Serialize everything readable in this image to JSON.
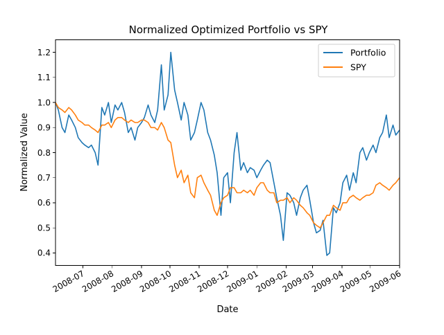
{
  "chart_data": {
    "type": "line",
    "title": "Normalized Optimized Portfolio vs SPY",
    "xlabel": "Date",
    "ylabel": "Normalized Value",
    "xlim": [
      "2008-06-02",
      "2009-06-01"
    ],
    "ylim": [
      0.35,
      1.25
    ],
    "x_ticks": [
      "2008-07",
      "2008-08",
      "2008-09",
      "2008-10",
      "2008-11",
      "2008-12",
      "2009-01",
      "2009-02",
      "2009-03",
      "2009-04",
      "2009-05",
      "2009-06"
    ],
    "y_ticks": [
      "0.4",
      "0.5",
      "0.6",
      "0.7",
      "0.8",
      "0.9",
      "1.0",
      "1.1",
      "1.2"
    ],
    "grid": false,
    "legend_position": "top-right",
    "series": [
      {
        "name": "Portfolio",
        "color": "#1f77b4",
        "x": [
          "2008-06-02",
          "2008-06-05",
          "2008-06-09",
          "2008-06-12",
          "2008-06-16",
          "2008-06-19",
          "2008-06-23",
          "2008-06-26",
          "2008-06-30",
          "2008-07-03",
          "2008-07-07",
          "2008-07-10",
          "2008-07-14",
          "2008-07-17",
          "2008-07-21",
          "2008-07-24",
          "2008-07-28",
          "2008-07-31",
          "2008-08-04",
          "2008-08-07",
          "2008-08-11",
          "2008-08-14",
          "2008-08-18",
          "2008-08-21",
          "2008-08-25",
          "2008-08-28",
          "2008-09-01",
          "2008-09-04",
          "2008-09-08",
          "2008-09-11",
          "2008-09-15",
          "2008-09-18",
          "2008-09-22",
          "2008-09-25",
          "2008-09-29",
          "2008-10-02",
          "2008-10-06",
          "2008-10-09",
          "2008-10-13",
          "2008-10-16",
          "2008-10-20",
          "2008-10-23",
          "2008-10-27",
          "2008-10-30",
          "2008-11-03",
          "2008-11-06",
          "2008-11-10",
          "2008-11-13",
          "2008-11-17",
          "2008-11-20",
          "2008-11-24",
          "2008-11-27",
          "2008-12-01",
          "2008-12-04",
          "2008-12-08",
          "2008-12-11",
          "2008-12-15",
          "2008-12-18",
          "2008-12-22",
          "2008-12-25",
          "2008-12-29",
          "2009-01-01",
          "2009-01-05",
          "2009-01-08",
          "2009-01-12",
          "2009-01-15",
          "2009-01-19",
          "2009-01-22",
          "2009-01-26",
          "2009-01-29",
          "2009-02-02",
          "2009-02-05",
          "2009-02-09",
          "2009-02-12",
          "2009-02-16",
          "2009-02-19",
          "2009-02-23",
          "2009-02-26",
          "2009-03-02",
          "2009-03-05",
          "2009-03-09",
          "2009-03-12",
          "2009-03-16",
          "2009-03-19",
          "2009-03-23",
          "2009-03-26",
          "2009-03-30",
          "2009-04-02",
          "2009-04-06",
          "2009-04-09",
          "2009-04-13",
          "2009-04-16",
          "2009-04-20",
          "2009-04-23",
          "2009-04-27",
          "2009-04-30",
          "2009-05-04",
          "2009-05-07",
          "2009-05-11",
          "2009-05-14",
          "2009-05-18",
          "2009-05-21",
          "2009-05-25",
          "2009-05-28",
          "2009-06-01"
        ],
        "values": [
          1.0,
          0.97,
          0.9,
          0.88,
          0.95,
          0.93,
          0.9,
          0.86,
          0.84,
          0.83,
          0.82,
          0.83,
          0.8,
          0.75,
          0.98,
          0.95,
          1.0,
          0.92,
          0.99,
          0.97,
          1.0,
          0.96,
          0.88,
          0.9,
          0.85,
          0.9,
          0.92,
          0.94,
          0.99,
          0.95,
          0.92,
          0.97,
          1.15,
          0.97,
          1.03,
          1.2,
          1.05,
          1.0,
          0.93,
          1.0,
          0.95,
          0.85,
          0.88,
          0.93,
          1.0,
          0.97,
          0.88,
          0.85,
          0.79,
          0.72,
          0.55,
          0.7,
          0.72,
          0.6,
          0.8,
          0.88,
          0.73,
          0.76,
          0.72,
          0.74,
          0.73,
          0.7,
          0.73,
          0.75,
          0.77,
          0.76,
          0.68,
          0.62,
          0.55,
          0.45,
          0.64,
          0.63,
          0.6,
          0.55,
          0.62,
          0.65,
          0.67,
          0.61,
          0.52,
          0.48,
          0.49,
          0.53,
          0.39,
          0.4,
          0.58,
          0.56,
          0.6,
          0.68,
          0.71,
          0.65,
          0.72,
          0.68,
          0.8,
          0.82,
          0.77,
          0.8,
          0.83,
          0.8,
          0.86,
          0.88,
          0.95,
          0.86,
          0.91,
          0.87,
          0.89
        ]
      },
      {
        "name": "SPY",
        "color": "#ff7f0e",
        "x": [
          "2008-06-02",
          "2008-06-05",
          "2008-06-09",
          "2008-06-12",
          "2008-06-16",
          "2008-06-19",
          "2008-06-23",
          "2008-06-26",
          "2008-06-30",
          "2008-07-03",
          "2008-07-07",
          "2008-07-10",
          "2008-07-14",
          "2008-07-17",
          "2008-07-21",
          "2008-07-24",
          "2008-07-28",
          "2008-07-31",
          "2008-08-04",
          "2008-08-07",
          "2008-08-11",
          "2008-08-14",
          "2008-08-18",
          "2008-08-21",
          "2008-08-25",
          "2008-08-28",
          "2008-09-01",
          "2008-09-04",
          "2008-09-08",
          "2008-09-11",
          "2008-09-15",
          "2008-09-18",
          "2008-09-22",
          "2008-09-25",
          "2008-09-29",
          "2008-10-02",
          "2008-10-06",
          "2008-10-09",
          "2008-10-13",
          "2008-10-16",
          "2008-10-20",
          "2008-10-23",
          "2008-10-27",
          "2008-10-30",
          "2008-11-03",
          "2008-11-06",
          "2008-11-10",
          "2008-11-13",
          "2008-11-17",
          "2008-11-20",
          "2008-11-24",
          "2008-11-27",
          "2008-12-01",
          "2008-12-04",
          "2008-12-08",
          "2008-12-11",
          "2008-12-15",
          "2008-12-18",
          "2008-12-22",
          "2008-12-25",
          "2008-12-29",
          "2009-01-01",
          "2009-01-05",
          "2009-01-08",
          "2009-01-12",
          "2009-01-15",
          "2009-01-19",
          "2009-01-22",
          "2009-01-26",
          "2009-01-29",
          "2009-02-02",
          "2009-02-05",
          "2009-02-09",
          "2009-02-12",
          "2009-02-16",
          "2009-02-19",
          "2009-02-23",
          "2009-02-26",
          "2009-03-02",
          "2009-03-05",
          "2009-03-09",
          "2009-03-12",
          "2009-03-16",
          "2009-03-19",
          "2009-03-23",
          "2009-03-26",
          "2009-03-30",
          "2009-04-02",
          "2009-04-06",
          "2009-04-09",
          "2009-04-13",
          "2009-04-16",
          "2009-04-20",
          "2009-04-23",
          "2009-04-27",
          "2009-04-30",
          "2009-05-04",
          "2009-05-07",
          "2009-05-11",
          "2009-05-14",
          "2009-05-18",
          "2009-05-21",
          "2009-05-25",
          "2009-05-28",
          "2009-06-01"
        ],
        "values": [
          1.0,
          0.98,
          0.97,
          0.96,
          0.98,
          0.97,
          0.95,
          0.93,
          0.92,
          0.91,
          0.91,
          0.9,
          0.89,
          0.88,
          0.91,
          0.91,
          0.92,
          0.9,
          0.93,
          0.94,
          0.94,
          0.93,
          0.92,
          0.93,
          0.92,
          0.92,
          0.93,
          0.93,
          0.92,
          0.9,
          0.9,
          0.89,
          0.92,
          0.9,
          0.85,
          0.84,
          0.75,
          0.7,
          0.73,
          0.68,
          0.71,
          0.64,
          0.62,
          0.7,
          0.71,
          0.68,
          0.65,
          0.63,
          0.57,
          0.55,
          0.6,
          0.62,
          0.63,
          0.66,
          0.66,
          0.64,
          0.64,
          0.65,
          0.64,
          0.65,
          0.63,
          0.66,
          0.68,
          0.68,
          0.65,
          0.64,
          0.64,
          0.6,
          0.61,
          0.61,
          0.62,
          0.6,
          0.62,
          0.61,
          0.59,
          0.58,
          0.56,
          0.55,
          0.52,
          0.51,
          0.5,
          0.52,
          0.55,
          0.55,
          0.59,
          0.58,
          0.57,
          0.6,
          0.6,
          0.62,
          0.63,
          0.62,
          0.61,
          0.62,
          0.63,
          0.63,
          0.64,
          0.67,
          0.68,
          0.67,
          0.66,
          0.65,
          0.67,
          0.68,
          0.7
        ]
      }
    ]
  }
}
